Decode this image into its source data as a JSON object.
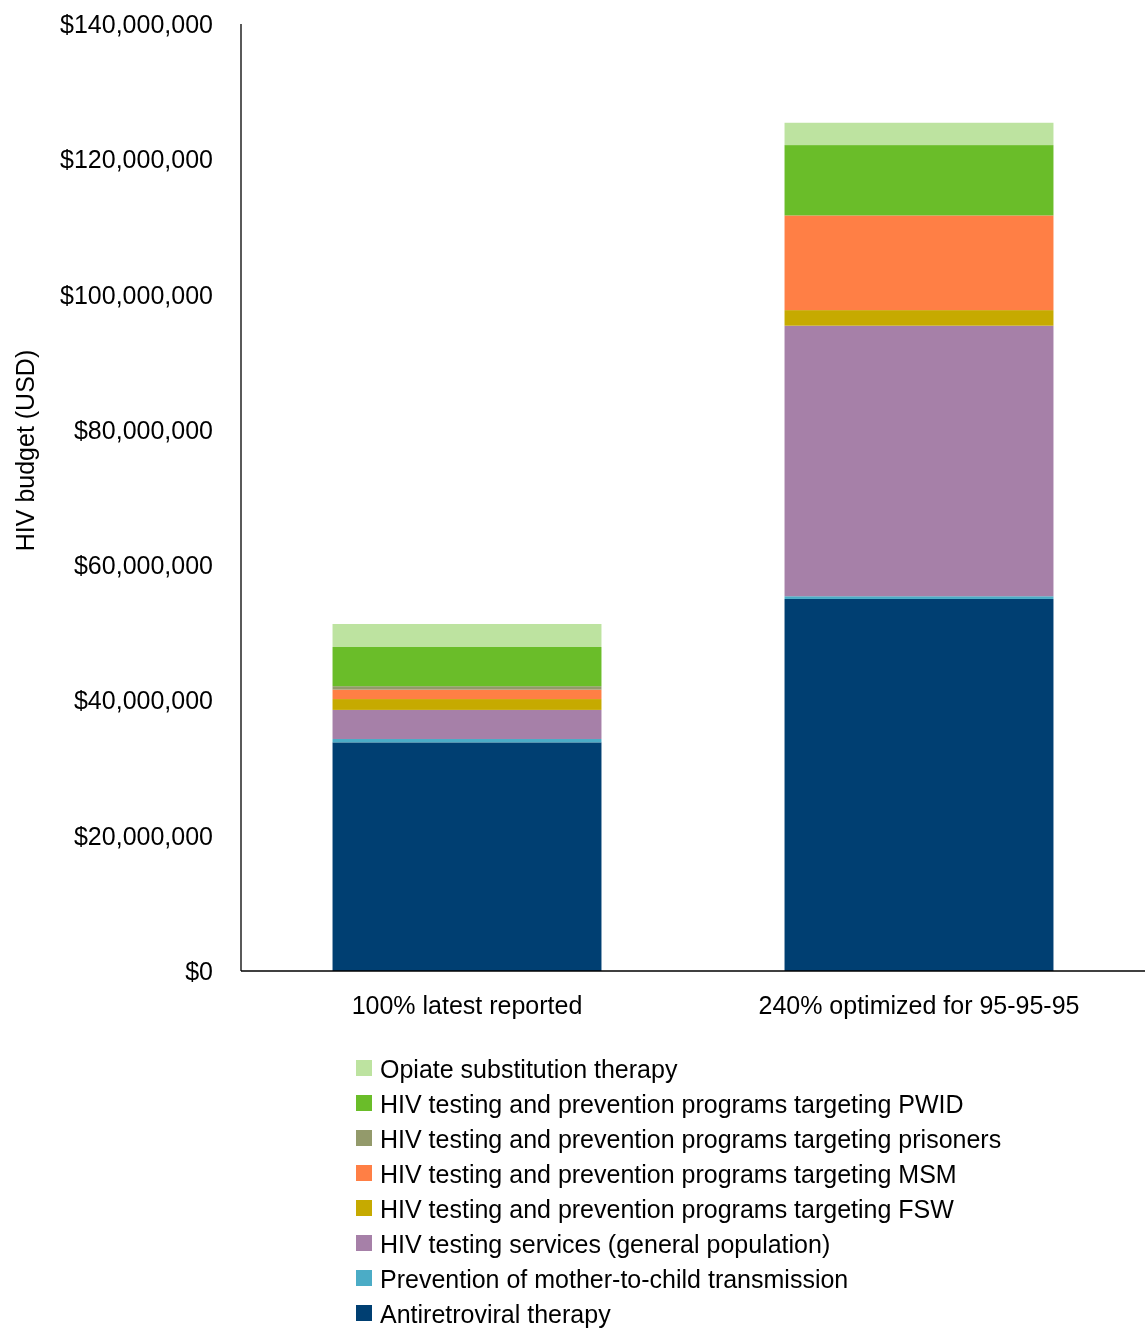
{
  "chart_data": {
    "type": "bar",
    "stacked": true,
    "ylabel": "HIV budget (USD)",
    "categories": [
      "100% latest reported",
      "240% optimized for 95-95-95"
    ],
    "series": [
      {
        "name": "Antiretroviral therapy",
        "color": "#003f72",
        "values": [
          33800000,
          55000000
        ]
      },
      {
        "name": "Prevention of mother-to-child transmission",
        "color": "#4bacc6",
        "values": [
          500000,
          400000
        ]
      },
      {
        "name": "HIV testing services (general population)",
        "color": "#a680a8",
        "values": [
          4300000,
          40000000
        ]
      },
      {
        "name": "HIV testing and prevention programs targeting FSW",
        "color": "#c6aa00",
        "values": [
          1600000,
          2300000
        ]
      },
      {
        "name": "HIV testing and prevention programs targeting MSM",
        "color": "#ff7f45",
        "values": [
          1400000,
          14000000
        ]
      },
      {
        "name": "HIV testing and prevention programs targeting prisoners",
        "color": "#939a6b",
        "values": [
          500000,
          0
        ]
      },
      {
        "name": "HIV testing and prevention programs targeting PWID",
        "color": "#6abd29",
        "values": [
          5800000,
          10400000
        ]
      },
      {
        "name": "Opiate substitution therapy",
        "color": "#bde3a0",
        "values": [
          3400000,
          3300000
        ]
      }
    ],
    "ylim": [
      0,
      140000000
    ],
    "yticks": [
      {
        "value": 0,
        "label": "$0"
      },
      {
        "value": 20000000,
        "label": "$20,000,000"
      },
      {
        "value": 40000000,
        "label": "$40,000,000"
      },
      {
        "value": 60000000,
        "label": "$60,000,000"
      },
      {
        "value": 80000000,
        "label": "$80,000,000"
      },
      {
        "value": 100000000,
        "label": "$100,000,000"
      },
      {
        "value": 120000000,
        "label": "$120,000,000"
      },
      {
        "value": 140000000,
        "label": "$140,000,000"
      }
    ],
    "legend": "bottom"
  }
}
